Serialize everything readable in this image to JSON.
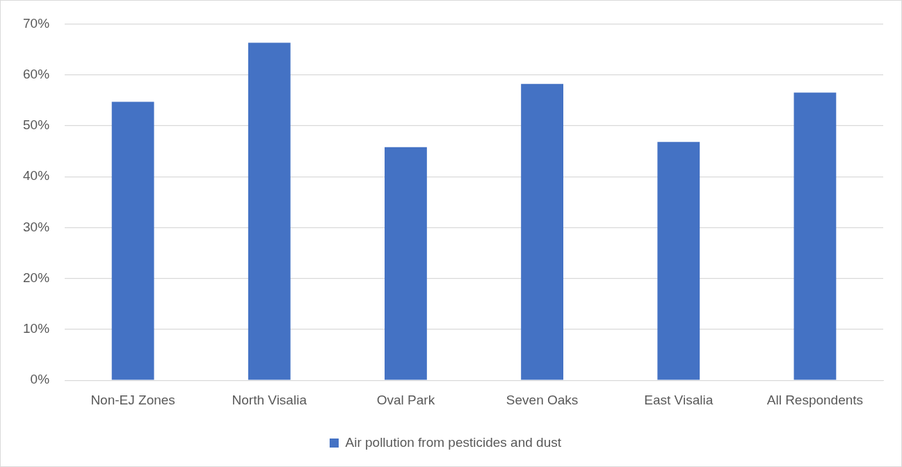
{
  "chart_data": {
    "type": "bar",
    "categories": [
      "Non-EJ Zones",
      "North Visalia",
      "Oval Park",
      "Seven Oaks",
      "East Visalia",
      "All Respondents"
    ],
    "series": [
      {
        "name": "Air pollution from pesticides and dust",
        "color": "#4472c4",
        "values": [
          54.7,
          66.3,
          45.8,
          58.2,
          46.8,
          56.5
        ]
      }
    ],
    "ylim": [
      0,
      70
    ],
    "yticks": [
      {
        "value": 0,
        "label": "0%"
      },
      {
        "value": 10,
        "label": "10%"
      },
      {
        "value": 20,
        "label": "20%"
      },
      {
        "value": 30,
        "label": "30%"
      },
      {
        "value": 40,
        "label": "40%"
      },
      {
        "value": 50,
        "label": "50%"
      },
      {
        "value": 60,
        "label": "60%"
      },
      {
        "value": 70,
        "label": "70%"
      }
    ],
    "grid": "y",
    "legend": "bottom"
  }
}
